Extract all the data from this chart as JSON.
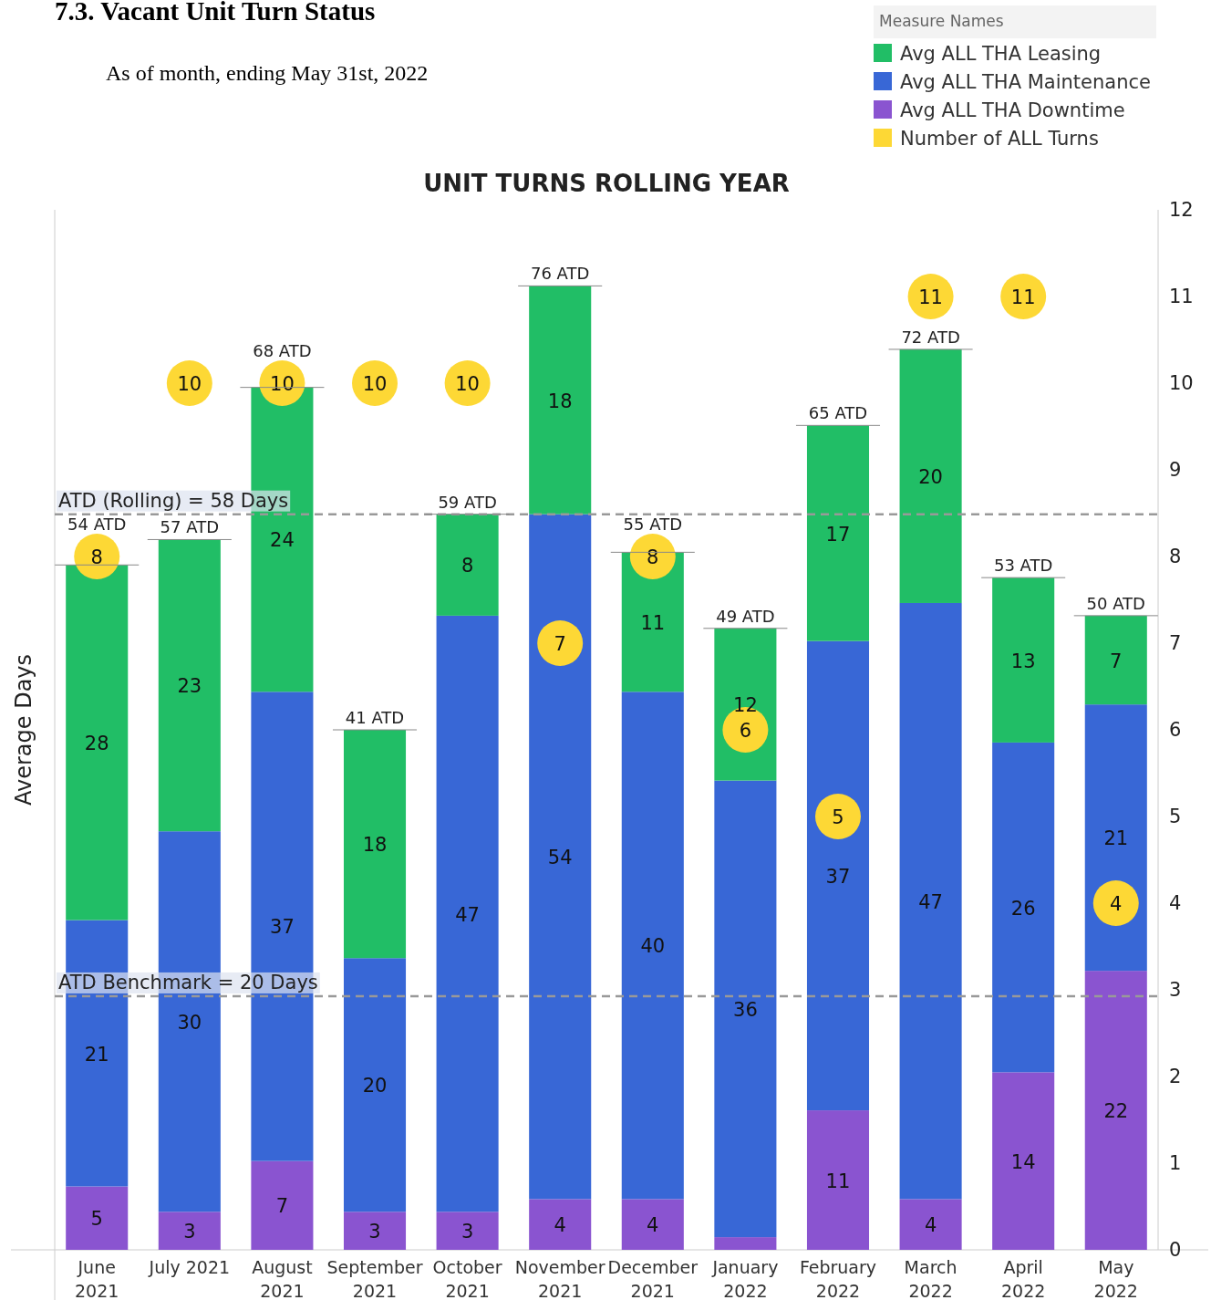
{
  "chart_data": {
    "type": "bar",
    "title": "7.3. Vacant Unit Turn Status",
    "subtitle": "As of month, ending May 31st, 2022",
    "annotations": [
      "UNIT TURNS ROLLING YEAR"
    ],
    "y2label": "Average Days",
    "legend_title": "Measure Names",
    "legend": "top right",
    "stacked": true,
    "categories": [
      "June 2021",
      "July 2021",
      "August 2021",
      "September 2021",
      "October 2021",
      "November 2021",
      "December 2021",
      "January 2022",
      "February 2022",
      "March 2022",
      "April 2022",
      "May 2022"
    ],
    "series": [
      {
        "name": "Avg ALL THA Downtime",
        "axis": "y2",
        "color": "#8a54d0",
        "values": [
          5,
          3,
          7,
          3,
          3,
          4,
          4,
          1,
          11,
          4,
          14,
          22
        ],
        "value_labels": [
          "5",
          "3",
          "7",
          "3",
          "3",
          "4",
          "4",
          null,
          "11",
          "4",
          "14",
          "22"
        ]
      },
      {
        "name": "Avg ALL THA Maintenance",
        "axis": "y2",
        "color": "#3867d6",
        "values": [
          21,
          30,
          37,
          20,
          47,
          54,
          40,
          36,
          37,
          47,
          26,
          21
        ],
        "value_labels": [
          "21",
          "30",
          "37",
          "20",
          "47",
          "54",
          "40",
          "36",
          "37",
          "47",
          "26",
          "21"
        ]
      },
      {
        "name": "Avg ALL THA Leasing",
        "axis": "y2",
        "color": "#21be66",
        "values": [
          28,
          23,
          24,
          18,
          8,
          18,
          11,
          12,
          17,
          20,
          13,
          7
        ],
        "value_labels": [
          "28",
          "23",
          "24",
          "18",
          "8",
          "18",
          "11",
          "12",
          "17",
          "20",
          "13",
          "7"
        ]
      },
      {
        "name": "Number of ALL Turns",
        "type": "scatter",
        "marker": "circle",
        "color": "#fdd835",
        "values": [
          8,
          10,
          10,
          10,
          10,
          7,
          8,
          6,
          5,
          11,
          11,
          4
        ],
        "value_labels": [
          "8",
          "10",
          "10",
          "10",
          "10",
          "7",
          "8",
          "6",
          "5",
          "11",
          "11",
          "4"
        ]
      }
    ],
    "totals": [
      "54 ATD",
      "57 ATD",
      "68 ATD",
      "41 ATD",
      "59 ATD",
      "76 ATD",
      "55 ATD",
      "49 ATD",
      "65 ATD",
      "72 ATD",
      "53 ATD",
      "50 ATD"
    ],
    "ylim": [
      0,
      12
    ],
    "yticks": [
      0,
      1,
      2,
      3,
      4,
      5,
      6,
      7,
      8,
      9,
      10,
      11,
      12
    ],
    "y2lim": [
      0,
      82
    ],
    "ref_lines": [
      {
        "axis": "y2",
        "value": 58,
        "label": "ATD (Rolling) = 58 Days",
        "line_style": "dashed"
      },
      {
        "axis": "y2",
        "value": 20,
        "label": "ATD Benchmark = 20 Days",
        "line_style": "dashed"
      }
    ]
  }
}
